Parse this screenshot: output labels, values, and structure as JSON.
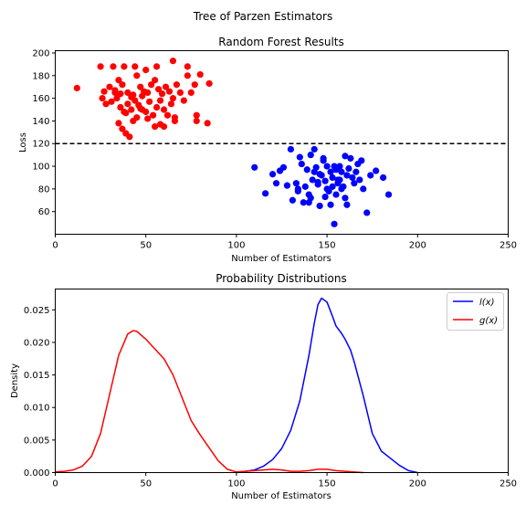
{
  "suptitle": "Tree of Parzen Estimators",
  "chart_data": [
    {
      "type": "scatter",
      "title": "Random Forest Results",
      "xlabel": "Number of Estimators",
      "ylabel": "Loss",
      "xlim": [
        0,
        250
      ],
      "ylim": [
        40,
        202
      ],
      "xticks": [
        0,
        50,
        100,
        150,
        200,
        250
      ],
      "yticks": [
        60,
        80,
        100,
        120,
        140,
        160,
        180,
        200
      ],
      "threshold": 120,
      "threshold_style": "dashed",
      "grid": false,
      "series": [
        {
          "color": "#ff0000",
          "points": [
            [
              12,
              169
            ],
            [
              25,
              188
            ],
            [
              32,
              188
            ],
            [
              38,
              188
            ],
            [
              44,
              188
            ],
            [
              50,
              185
            ],
            [
              56,
              188
            ],
            [
              65,
              193
            ],
            [
              73,
              188
            ],
            [
              80,
              181
            ],
            [
              85,
              173
            ],
            [
              27,
              166
            ],
            [
              30,
              170
            ],
            [
              33,
              167
            ],
            [
              35,
              176
            ],
            [
              37,
              172
            ],
            [
              40,
              165
            ],
            [
              42,
              161
            ],
            [
              45,
              180
            ],
            [
              47,
              170
            ],
            [
              49,
              166
            ],
            [
              51,
              165
            ],
            [
              53,
              172
            ],
            [
              55,
              176
            ],
            [
              57,
              168
            ],
            [
              59,
              164
            ],
            [
              61,
              170
            ],
            [
              63,
              166
            ],
            [
              65,
              160
            ],
            [
              67,
              172
            ],
            [
              69,
              165
            ],
            [
              71,
              158
            ],
            [
              73,
              180
            ],
            [
              75,
              165
            ],
            [
              77,
              172
            ],
            [
              26,
              160
            ],
            [
              28,
              155
            ],
            [
              31,
              157
            ],
            [
              34,
              160
            ],
            [
              36,
              152
            ],
            [
              38,
              148
            ],
            [
              40,
              155
            ],
            [
              42,
              150
            ],
            [
              44,
              158
            ],
            [
              46,
              154
            ],
            [
              48,
              162
            ],
            [
              50,
              148
            ],
            [
              52,
              157
            ],
            [
              54,
              145
            ],
            [
              56,
              152
            ],
            [
              58,
              158
            ],
            [
              60,
              150
            ],
            [
              62,
              145
            ],
            [
              64,
              155
            ],
            [
              35,
              138
            ],
            [
              37,
              133
            ],
            [
              39,
              129
            ],
            [
              41,
              126
            ],
            [
              43,
              140
            ],
            [
              45,
              143
            ],
            [
              47,
              151
            ],
            [
              55,
              135
            ],
            [
              58,
              137
            ],
            [
              66,
              140
            ],
            [
              66,
              143
            ],
            [
              78,
              140
            ],
            [
              78,
              145
            ],
            [
              84,
              138
            ],
            [
              33,
              165
            ],
            [
              36,
              164
            ],
            [
              48,
              150
            ],
            [
              51,
              142
            ],
            [
              60,
              135
            ],
            [
              39,
              147
            ],
            [
              43,
              163
            ]
          ]
        },
        {
          "color": "#0000ff",
          "points": [
            [
              110,
              99
            ],
            [
              116,
              76
            ],
            [
              120,
              93
            ],
            [
              122,
              85
            ],
            [
              124,
              96
            ],
            [
              126,
              99
            ],
            [
              128,
              83
            ],
            [
              130,
              115
            ],
            [
              131,
              70
            ],
            [
              133,
              85
            ],
            [
              134,
              80
            ],
            [
              135,
              108
            ],
            [
              137,
              68
            ],
            [
              138,
              82
            ],
            [
              139,
              97
            ],
            [
              140,
              68
            ],
            [
              141,
              72
            ],
            [
              142,
              88
            ],
            [
              143,
              95
            ],
            [
              144,
              99
            ],
            [
              145,
              84
            ],
            [
              146,
              65
            ],
            [
              147,
              92
            ],
            [
              148,
              105
            ],
            [
              149,
              87
            ],
            [
              150,
              80
            ],
            [
              151,
              78
            ],
            [
              152,
              95
            ],
            [
              153,
              90
            ],
            [
              154,
              100
            ],
            [
              155,
              75
            ],
            [
              156,
              85
            ],
            [
              157,
              88
            ],
            [
              158,
              95
            ],
            [
              159,
              82
            ],
            [
              160,
              72
            ],
            [
              161,
              66
            ],
            [
              162,
              98
            ],
            [
              163,
              107
            ],
            [
              164,
              90
            ],
            [
              165,
              85
            ],
            [
              166,
              95
            ],
            [
              167,
              102
            ],
            [
              168,
              88
            ],
            [
              169,
              105
            ],
            [
              170,
              80
            ],
            [
              172,
              59
            ],
            [
              174,
              92
            ],
            [
              177,
              96
            ],
            [
              181,
              90
            ],
            [
              184,
              75
            ],
            [
              154,
              49
            ],
            [
              136,
              102
            ],
            [
              141,
              110
            ],
            [
              143,
              115
            ],
            [
              148,
              107
            ],
            [
              152,
              66
            ],
            [
              157,
              100
            ],
            [
              160,
              109
            ],
            [
              134,
              78
            ],
            [
              146,
              93
            ],
            [
              150,
              100
            ],
            [
              153,
              82
            ],
            [
              156,
              88
            ],
            [
              158,
              80
            ],
            [
              161,
              92
            ],
            [
              140,
              75
            ],
            [
              145,
              86
            ],
            [
              149,
              73
            ],
            [
              155,
              97
            ]
          ]
        }
      ]
    },
    {
      "type": "line",
      "title": "Probability Distributions",
      "xlabel": "Number of Estimators",
      "ylabel": "Density",
      "xlim": [
        0,
        250
      ],
      "ylim": [
        0,
        0.0282
      ],
      "xticks": [
        0,
        50,
        100,
        150,
        200,
        250
      ],
      "yticks": [
        0.0,
        0.005,
        0.01,
        0.015,
        0.02,
        0.025
      ],
      "ytick_labels": [
        "0.000",
        "0.005",
        "0.010",
        "0.015",
        "0.020",
        "0.025"
      ],
      "legend_position": "upper right",
      "series": [
        {
          "name": "l(x)",
          "color": "#0000ff",
          "x": [
            100,
            105,
            110,
            115,
            120,
            125,
            130,
            135,
            140,
            143,
            145,
            147,
            150,
            153,
            155,
            158,
            160,
            163,
            165,
            170,
            175,
            180,
            185,
            190,
            195,
            200
          ],
          "y": [
            0.0,
            0.0002,
            0.0004,
            0.001,
            0.002,
            0.0037,
            0.0065,
            0.011,
            0.018,
            0.023,
            0.0258,
            0.0268,
            0.0262,
            0.024,
            0.0225,
            0.0214,
            0.0205,
            0.0188,
            0.017,
            0.0118,
            0.006,
            0.0033,
            0.0022,
            0.0011,
            0.0003,
            0.0
          ]
        },
        {
          "name": "g(x)",
          "color": "#ff0000",
          "x": [
            0,
            5,
            10,
            15,
            20,
            25,
            30,
            35,
            40,
            43,
            45,
            50,
            55,
            60,
            65,
            70,
            75,
            80,
            85,
            90,
            95,
            100,
            105,
            110,
            115,
            120,
            125,
            130,
            135,
            140,
            145,
            150,
            155,
            160,
            170
          ],
          "y": [
            0.0001,
            0.0002,
            0.0004,
            0.001,
            0.0025,
            0.006,
            0.012,
            0.018,
            0.0213,
            0.0218,
            0.0217,
            0.0205,
            0.019,
            0.0175,
            0.015,
            0.0115,
            0.008,
            0.0058,
            0.0038,
            0.0018,
            0.0005,
            0.0001,
            0.0002,
            0.0003,
            0.0004,
            0.0005,
            0.0004,
            0.0002,
            0.0002,
            0.0003,
            0.0005,
            0.0005,
            0.0003,
            0.0002,
            0.0
          ]
        }
      ]
    }
  ]
}
